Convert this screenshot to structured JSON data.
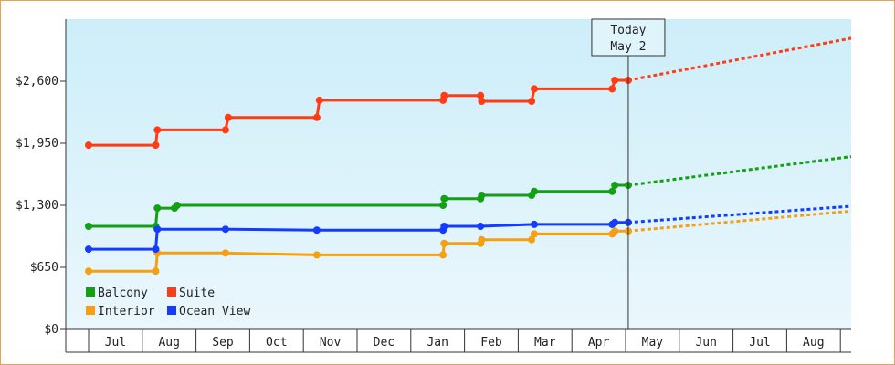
{
  "chart_data": {
    "type": "line",
    "title": "",
    "xlabel": "",
    "ylabel": "",
    "ylim": [
      0,
      3050
    ],
    "y_ticks": [
      {
        "value": 0,
        "label": "$0"
      },
      {
        "value": 650,
        "label": "$650"
      },
      {
        "value": 1300,
        "label": "$1,300"
      },
      {
        "value": 1950,
        "label": "$1,950"
      },
      {
        "value": 2600,
        "label": "$2,600"
      }
    ],
    "x_months": [
      "Jul",
      "Aug",
      "Sep",
      "Oct",
      "Nov",
      "Dec",
      "Jan",
      "Feb",
      "Mar",
      "Apr",
      "May",
      "Jun",
      "Jul",
      "Aug"
    ],
    "x_range": [
      0,
      15.5
    ],
    "today": {
      "line1": "Today",
      "line2": "May 2",
      "x": 10.05
    },
    "grid": false,
    "legend_position": "bottom-left",
    "background": {
      "top": "#cdeef9",
      "bottom": "#eaf7fc"
    },
    "series": [
      {
        "name": "Balcony",
        "color": "#14a014",
        "points": [
          [
            0,
            1080
          ],
          [
            1.25,
            1080
          ],
          [
            1.28,
            1270
          ],
          [
            1.6,
            1270
          ],
          [
            1.65,
            1300
          ],
          [
            2.55,
            1300
          ],
          [
            4.25,
            1300
          ],
          [
            6.6,
            1300
          ],
          [
            6.62,
            1370
          ],
          [
            7.3,
            1370
          ],
          [
            7.32,
            1405
          ],
          [
            8.25,
            1405
          ],
          [
            8.3,
            1445
          ],
          [
            9.75,
            1445
          ],
          [
            9.8,
            1510
          ],
          [
            9.95,
            1510
          ],
          [
            10.05,
            1510
          ]
        ],
        "forecast": [
          [
            10.05,
            1510
          ],
          [
            15.5,
            1810
          ]
        ]
      },
      {
        "name": "Suite",
        "color": "#ff3c14",
        "points": [
          [
            0,
            1930
          ],
          [
            1.25,
            1930
          ],
          [
            1.28,
            2090
          ],
          [
            2.55,
            2090
          ],
          [
            2.6,
            2220
          ],
          [
            4.25,
            2220
          ],
          [
            4.3,
            2400
          ],
          [
            6.6,
            2400
          ],
          [
            6.62,
            2450
          ],
          [
            7.3,
            2450
          ],
          [
            7.32,
            2390
          ],
          [
            8.25,
            2390
          ],
          [
            8.3,
            2520
          ],
          [
            9.75,
            2520
          ],
          [
            9.8,
            2610
          ],
          [
            10.05,
            2610
          ]
        ],
        "forecast": [
          [
            10.05,
            2610
          ],
          [
            15.5,
            3050
          ]
        ]
      },
      {
        "name": "Interior",
        "color": "#f5a014",
        "points": [
          [
            0,
            610
          ],
          [
            1.25,
            610
          ],
          [
            1.28,
            800
          ],
          [
            2.55,
            800
          ],
          [
            4.25,
            780
          ],
          [
            6.6,
            780
          ],
          [
            6.62,
            900
          ],
          [
            7.3,
            900
          ],
          [
            7.32,
            940
          ],
          [
            8.25,
            940
          ],
          [
            8.3,
            1000
          ],
          [
            9.75,
            1000
          ],
          [
            9.8,
            1030
          ],
          [
            10.05,
            1030
          ]
        ],
        "forecast": [
          [
            10.05,
            1030
          ],
          [
            15.5,
            1240
          ]
        ]
      },
      {
        "name": "Ocean View",
        "color": "#143cff",
        "points": [
          [
            0,
            840
          ],
          [
            1.25,
            840
          ],
          [
            1.28,
            1050
          ],
          [
            2.55,
            1050
          ],
          [
            4.25,
            1040
          ],
          [
            6.6,
            1040
          ],
          [
            6.62,
            1080
          ],
          [
            7.3,
            1080
          ],
          [
            8.3,
            1100
          ],
          [
            9.75,
            1100
          ],
          [
            9.8,
            1120
          ],
          [
            10.05,
            1120
          ]
        ],
        "forecast": [
          [
            10.05,
            1120
          ],
          [
            15.5,
            1290
          ]
        ]
      }
    ],
    "legend": [
      {
        "name": "Balcony",
        "color": "#14a014"
      },
      {
        "name": "Suite",
        "color": "#ff3c14"
      },
      {
        "name": "Interior",
        "color": "#f5a014"
      },
      {
        "name": "Ocean View",
        "color": "#143cff"
      }
    ]
  }
}
